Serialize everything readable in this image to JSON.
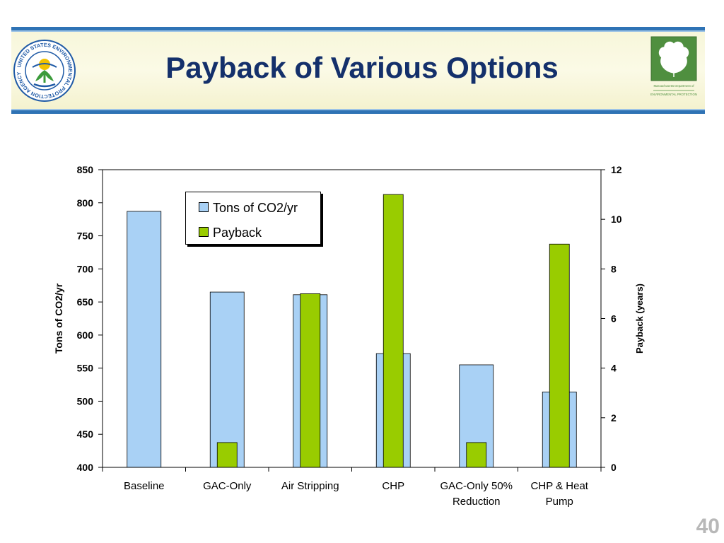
{
  "slide": {
    "title": "Payback of Various Options",
    "page_number": "40"
  },
  "logos": {
    "left": {
      "text": "UNITED STATES ENVIRONMENTAL PROTECTION AGENCY"
    },
    "right": {
      "line1": "Massachusetts Department of",
      "line2": "ENVIRONMENTAL PROTECTION"
    }
  },
  "colors": {
    "co2": "#a9d1f5",
    "payback": "#99cc00",
    "title": "#14306b",
    "banner_rule": "#2f73b5"
  },
  "chart_data": {
    "type": "bar",
    "categories": [
      [
        "Baseline"
      ],
      [
        "GAC-Only"
      ],
      [
        "Air Stripping"
      ],
      [
        "CHP"
      ],
      [
        "GAC-Only 50%",
        "Reduction"
      ],
      [
        "CHP & Heat",
        "Pump"
      ]
    ],
    "series": [
      {
        "name": "Tons of CO2/yr",
        "axis": "left",
        "values": [
          787,
          665,
          661,
          572,
          555,
          514
        ]
      },
      {
        "name": "Payback",
        "axis": "right",
        "values": [
          0,
          1,
          7,
          11,
          1,
          9
        ]
      }
    ],
    "ylabel": "Tons of CO2/yr",
    "ylabel_right": "Payback (years)",
    "ylim": [
      400,
      850
    ],
    "ylim_right": [
      0,
      12
    ],
    "yticks": [
      "400",
      "450",
      "500",
      "550",
      "600",
      "650",
      "700",
      "750",
      "800",
      "850"
    ],
    "yticks_right": [
      "0",
      "2",
      "4",
      "6",
      "8",
      "10",
      "12"
    ],
    "grid": false,
    "legend_position": "top-left"
  }
}
